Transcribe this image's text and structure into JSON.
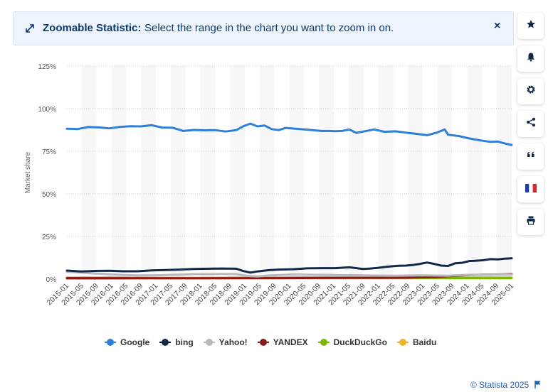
{
  "banner": {
    "bold_text": "Zoomable Statistic:",
    "text": "Select the range in the chart you want to zoom in on.",
    "close_label": "×"
  },
  "sidebar": {
    "buttons": [
      {
        "name": "favorite-button",
        "icon": "star-icon"
      },
      {
        "name": "notification-button",
        "icon": "bell-icon"
      },
      {
        "name": "settings-button",
        "icon": "gear-icon"
      },
      {
        "name": "share-button",
        "icon": "share-icon"
      },
      {
        "name": "cite-button",
        "icon": "quote-icon"
      },
      {
        "name": "language-button",
        "icon": "french-flag-icon"
      },
      {
        "name": "print-button",
        "icon": "printer-icon"
      }
    ]
  },
  "footer": {
    "credit": "© Statista 2025"
  },
  "chart_data": {
    "type": "line",
    "title": "",
    "xlabel": "",
    "ylabel": "Market share",
    "ylim": [
      0,
      125
    ],
    "yticks": [
      {
        "value": 0,
        "label": "0%"
      },
      {
        "value": 25,
        "label": "25%"
      },
      {
        "value": 50,
        "label": "50%"
      },
      {
        "value": 75,
        "label": "75%"
      },
      {
        "value": 100,
        "label": "100%"
      },
      {
        "value": 125,
        "label": "125%"
      }
    ],
    "xtick_labels": [
      "2015-01",
      "2015-05",
      "2015-09",
      "2016-01",
      "2016-05",
      "2016-09",
      "2017-01",
      "2017-05",
      "2017-09",
      "2018-01",
      "2018-05",
      "2018-09",
      "2019-01",
      "2019-05",
      "2019-09",
      "2020-01",
      "2020-05",
      "2020-09",
      "2021-01",
      "2021-05",
      "2021-09",
      "2022-01",
      "2022-05",
      "2022-09",
      "2023-01",
      "2023-05",
      "2023-09",
      "2024-01",
      "2024-05",
      "2024-09",
      "2025-01"
    ],
    "x_start": "2015-01",
    "n_months": 121,
    "series": [
      {
        "name": "Google",
        "color": "#2e7fd9",
        "points": [
          [
            0,
            88.2
          ],
          [
            3,
            88
          ],
          [
            6,
            89.2
          ],
          [
            9,
            89
          ],
          [
            12,
            88.4
          ],
          [
            15,
            89.3
          ],
          [
            18,
            89.7
          ],
          [
            21,
            89.6
          ],
          [
            24,
            90.3
          ],
          [
            27,
            88.9
          ],
          [
            30,
            88.8
          ],
          [
            33,
            86.9
          ],
          [
            36,
            87.5
          ],
          [
            39,
            87.3
          ],
          [
            42,
            87.4
          ],
          [
            45,
            86.6
          ],
          [
            48,
            87.4
          ],
          [
            50,
            89.7
          ],
          [
            52,
            91.2
          ],
          [
            54,
            89.6
          ],
          [
            56,
            90.1
          ],
          [
            58,
            88
          ],
          [
            60,
            87.4
          ],
          [
            62,
            88.7
          ],
          [
            66,
            88
          ],
          [
            69,
            87.5
          ],
          [
            72,
            86.9
          ],
          [
            74,
            86.9
          ],
          [
            76,
            86.8
          ],
          [
            78,
            86.9
          ],
          [
            80,
            87.8
          ],
          [
            82,
            85.8
          ],
          [
            84,
            86.6
          ],
          [
            87,
            87.8
          ],
          [
            90,
            86.4
          ],
          [
            93,
            86.7
          ],
          [
            96,
            85.9
          ],
          [
            99,
            85.2
          ],
          [
            102,
            84.4
          ],
          [
            105,
            86.1
          ],
          [
            107,
            87.8
          ],
          [
            108,
            84.7
          ],
          [
            111,
            83.9
          ],
          [
            114,
            82.5
          ],
          [
            117,
            81.4
          ],
          [
            120,
            80.5
          ],
          [
            122,
            80.7
          ],
          [
            124,
            79.6
          ],
          [
            126,
            78.7
          ]
        ]
      },
      {
        "name": "bing",
        "color": "#13294b",
        "points": [
          [
            0,
            5
          ],
          [
            4,
            4.5
          ],
          [
            8,
            4.8
          ],
          [
            12,
            4.9
          ],
          [
            16,
            4.6
          ],
          [
            20,
            4.6
          ],
          [
            24,
            5.1
          ],
          [
            28,
            5.3
          ],
          [
            32,
            5.6
          ],
          [
            36,
            5.9
          ],
          [
            40,
            6.1
          ],
          [
            44,
            6.2
          ],
          [
            48,
            6.1
          ],
          [
            50,
            4.7
          ],
          [
            52,
            3.8
          ],
          [
            54,
            4.5
          ],
          [
            57,
            5.2
          ],
          [
            60,
            5.6
          ],
          [
            64,
            5.8
          ],
          [
            68,
            6.3
          ],
          [
            72,
            6.4
          ],
          [
            76,
            6.4
          ],
          [
            80,
            6.9
          ],
          [
            84,
            5.9
          ],
          [
            86,
            6.2
          ],
          [
            88,
            6.6
          ],
          [
            90,
            7.1
          ],
          [
            92,
            7.5
          ],
          [
            94,
            7.8
          ],
          [
            96,
            7.9
          ],
          [
            98,
            8.3
          ],
          [
            100,
            8.9
          ],
          [
            102,
            9.7
          ],
          [
            104,
            8.9
          ],
          [
            106,
            7.9
          ],
          [
            108,
            7.7
          ],
          [
            110,
            9.3
          ],
          [
            112,
            9.6
          ],
          [
            114,
            10.6
          ],
          [
            116,
            10.8
          ],
          [
            118,
            11.1
          ],
          [
            120,
            11.7
          ],
          [
            122,
            11.6
          ],
          [
            124,
            12
          ],
          [
            126,
            12.2
          ]
        ]
      },
      {
        "name": "Yahoo!",
        "color": "#b8b8b8",
        "points": [
          [
            0,
            4.3
          ],
          [
            4,
            3.8
          ],
          [
            8,
            3.3
          ],
          [
            12,
            2.8
          ],
          [
            16,
            2.4
          ],
          [
            20,
            2.2
          ],
          [
            24,
            2.2
          ],
          [
            28,
            2.4
          ],
          [
            32,
            2.6
          ],
          [
            36,
            2.9
          ],
          [
            40,
            2.9
          ],
          [
            44,
            3
          ],
          [
            48,
            2.9
          ],
          [
            50,
            2.2
          ],
          [
            52,
            1.8
          ],
          [
            54,
            1.6
          ],
          [
            57,
            2.1
          ],
          [
            60,
            2.4
          ],
          [
            64,
            2.7
          ],
          [
            68,
            2.6
          ],
          [
            72,
            2.5
          ],
          [
            76,
            2.4
          ],
          [
            80,
            2.3
          ],
          [
            84,
            2.2
          ],
          [
            88,
            2.1
          ],
          [
            92,
            2
          ],
          [
            96,
            2.1
          ],
          [
            100,
            2.2
          ],
          [
            104,
            2.1
          ],
          [
            108,
            2
          ],
          [
            112,
            2.4
          ],
          [
            116,
            2.5
          ],
          [
            120,
            2.6
          ],
          [
            124,
            2.7
          ],
          [
            126,
            2.6
          ]
        ]
      },
      {
        "name": "YANDEX",
        "color": "#8b1a1a",
        "points": [
          [
            0,
            0.6
          ],
          [
            20,
            0.6
          ],
          [
            40,
            0.5
          ],
          [
            60,
            0.6
          ],
          [
            80,
            0.7
          ],
          [
            96,
            0.8
          ],
          [
            102,
            1.1
          ],
          [
            106,
            1.4
          ],
          [
            110,
            2
          ],
          [
            114,
            2.4
          ],
          [
            118,
            2.6
          ],
          [
            122,
            2.7
          ],
          [
            126,
            2.9
          ]
        ]
      },
      {
        "name": "DuckDuckGo",
        "color": "#7ab800",
        "points": [
          [
            0,
            0.3
          ],
          [
            12,
            0.3
          ],
          [
            24,
            0.4
          ],
          [
            36,
            0.4
          ],
          [
            48,
            0.5
          ],
          [
            60,
            0.6
          ],
          [
            72,
            0.7
          ],
          [
            84,
            0.7
          ],
          [
            96,
            0.7
          ],
          [
            108,
            0.6
          ],
          [
            120,
            0.6
          ],
          [
            126,
            0.6
          ]
        ]
      },
      {
        "name": "Baidu",
        "color": "#f0b323",
        "points": [
          [
            0,
            0.9
          ],
          [
            12,
            1
          ],
          [
            24,
            0.8
          ],
          [
            36,
            0.8
          ],
          [
            48,
            0.9
          ],
          [
            60,
            1
          ],
          [
            72,
            1.1
          ],
          [
            84,
            1
          ],
          [
            96,
            1
          ],
          [
            108,
            1
          ],
          [
            120,
            1
          ],
          [
            126,
            0.9
          ]
        ]
      }
    ]
  }
}
